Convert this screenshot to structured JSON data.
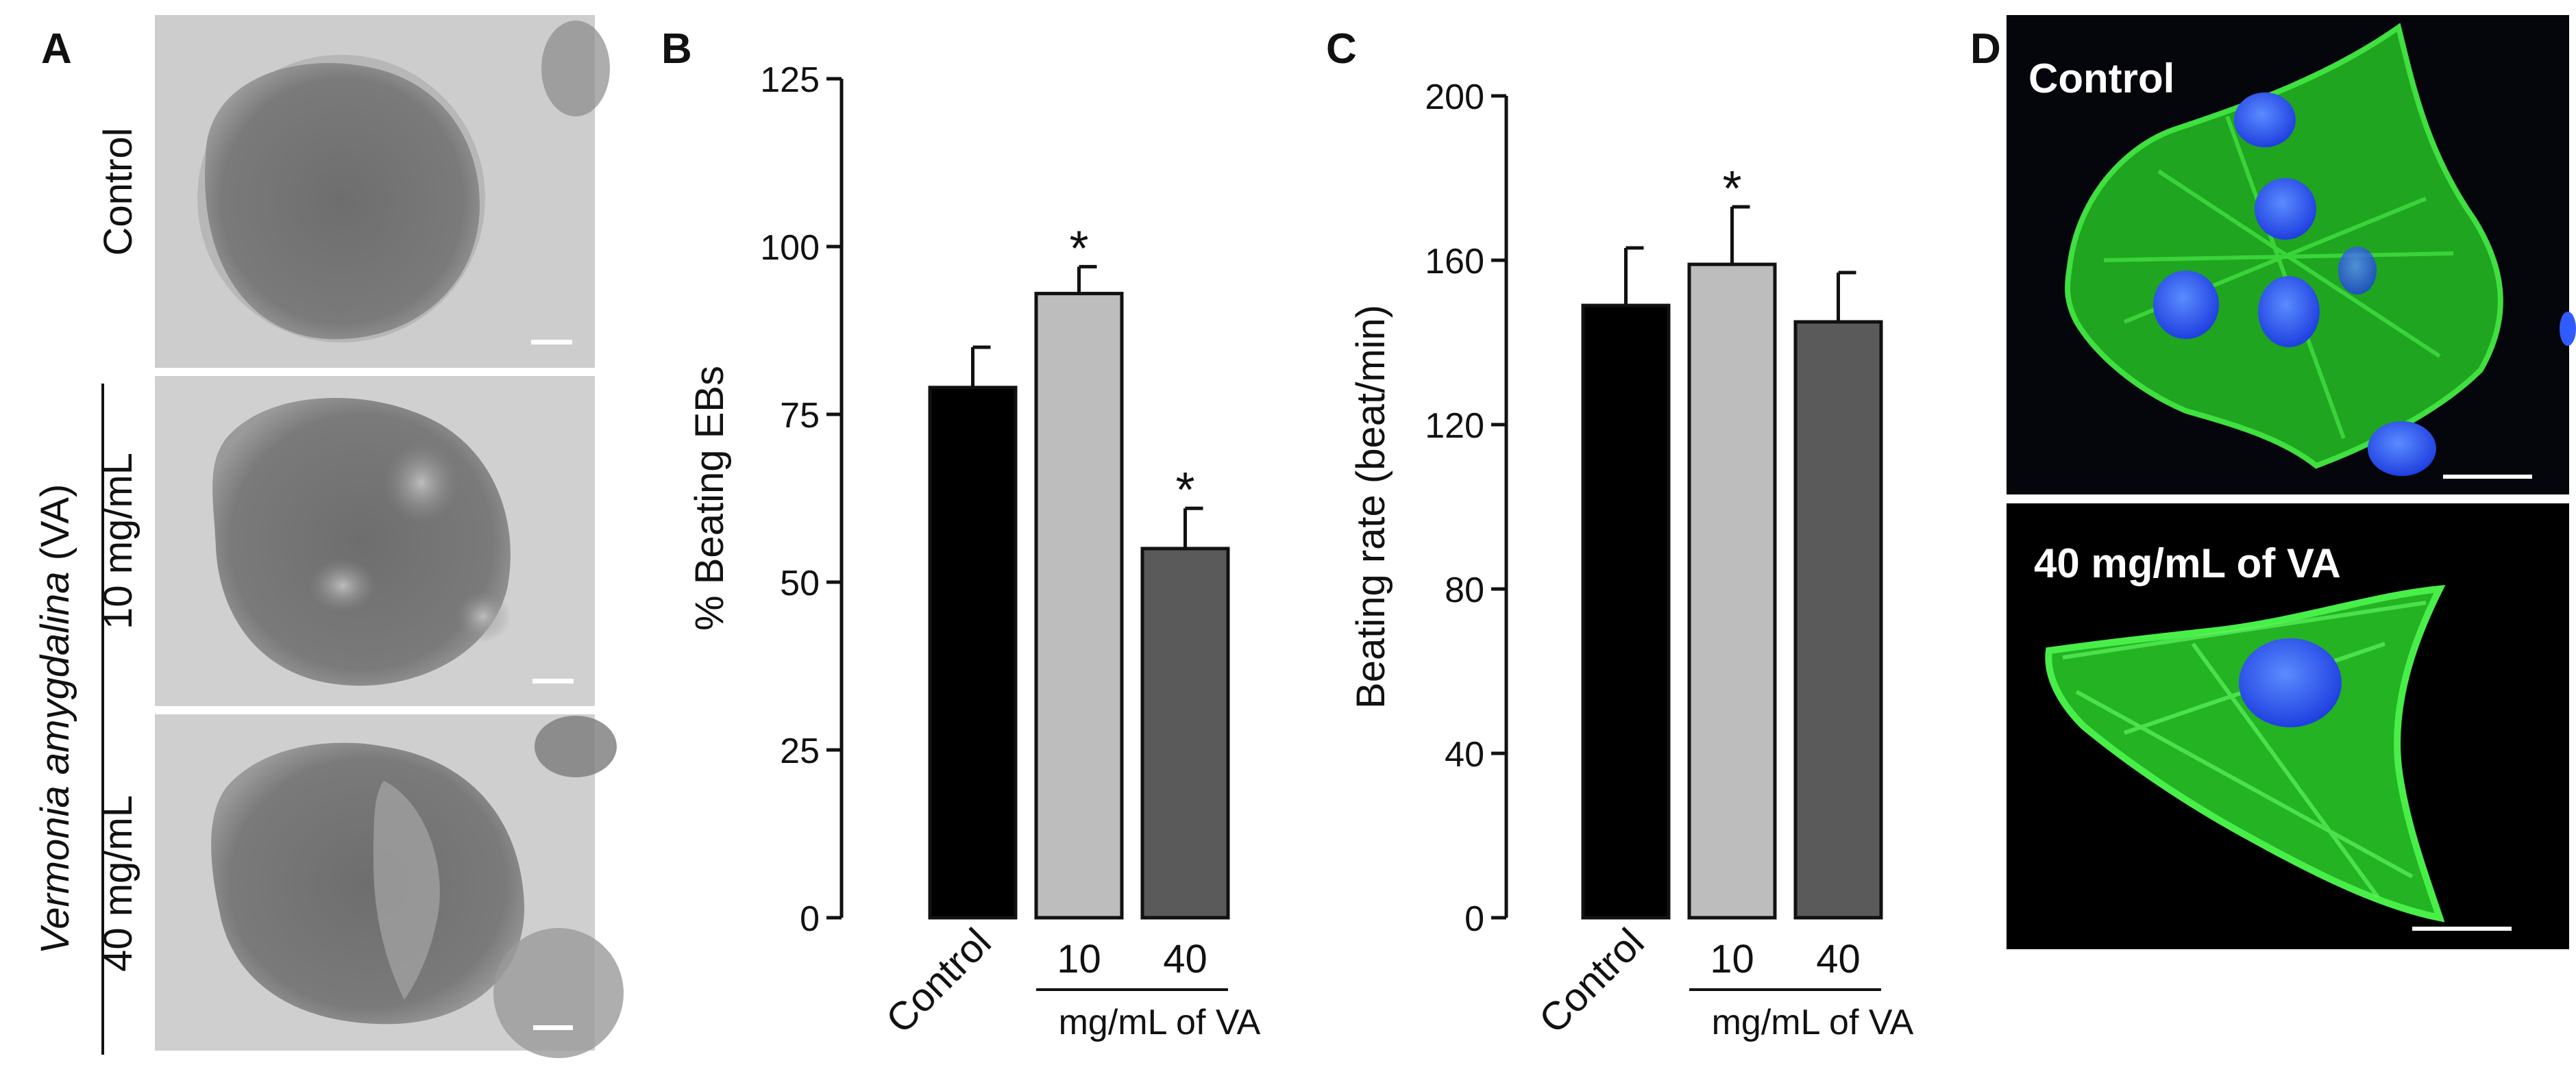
{
  "panels": {
    "A": {
      "letter": "A",
      "images": [
        {
          "label": "Control"
        },
        {
          "label": "10 mg/mL"
        },
        {
          "label": "40 mg/mL"
        }
      ],
      "group_label_italic": "Vermonia amygdalina",
      "group_label_suffix": " (VA)"
    },
    "B": {
      "letter": "B"
    },
    "C": {
      "letter": "C"
    },
    "D": {
      "letter": "D",
      "images": [
        {
          "label": "Control"
        },
        {
          "label": "40 mg/mL of VA"
        }
      ]
    }
  },
  "colors": {
    "control_bar": "#000000",
    "dose10_bar": "#bdbdbd",
    "dose40_bar": "#5a5a5a",
    "micro_bg": "#cfcfcf",
    "fluor_bg": "#000000",
    "actin_green": "#2fd12f",
    "nucleus_blue": "#2f5bff"
  },
  "chart_data": [
    {
      "type": "bar",
      "panel": "B",
      "categories": [
        "Control",
        "10",
        "40"
      ],
      "group_label": "mg/mL of VA",
      "ylabel": "% Beating EBs",
      "ylim": [
        0,
        125
      ],
      "yticks": [
        "0",
        "25",
        "50",
        "75",
        "100",
        "125"
      ],
      "values": [
        79,
        93,
        55
      ],
      "errors": [
        6,
        4,
        6
      ],
      "significance": [
        "",
        "*",
        "*"
      ]
    },
    {
      "type": "bar",
      "panel": "C",
      "categories": [
        "Control",
        "10",
        "40"
      ],
      "group_label": "mg/mL of VA",
      "ylabel": "Beating rate  (beat/min)",
      "ylim": [
        0,
        200
      ],
      "yticks": [
        "0",
        "40",
        "80",
        "120",
        "160",
        "200"
      ],
      "values": [
        149,
        159,
        145
      ],
      "errors": [
        14,
        14,
        12
      ],
      "significance": [
        "",
        "*",
        ""
      ]
    }
  ]
}
